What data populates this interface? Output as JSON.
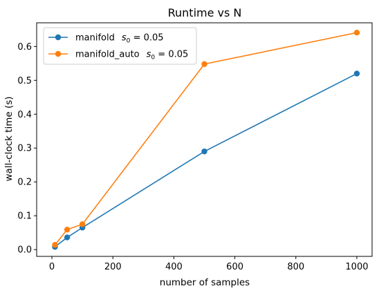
{
  "chart_data": {
    "type": "line",
    "title": "Runtime vs N",
    "xlabel": "number of samples",
    "ylabel": "wall-clock time (s)",
    "xlim": [
      -50,
      1050
    ],
    "ylim": [
      -0.02,
      0.67
    ],
    "x_ticks": [
      0,
      200,
      400,
      600,
      800,
      1000
    ],
    "y_ticks": [
      0.0,
      0.1,
      0.2,
      0.3,
      0.4,
      0.5,
      0.6
    ],
    "x_tick_labels": [
      "0",
      "200",
      "400",
      "600",
      "800",
      "1000"
    ],
    "y_tick_labels": [
      "0.0",
      "0.1",
      "0.2",
      "0.3",
      "0.4",
      "0.5",
      "0.6"
    ],
    "grid": false,
    "legend_position": "top-left",
    "series": [
      {
        "name": "manifold",
        "legend_param": "0.05",
        "color": "#1f77b4",
        "x": [
          10,
          50,
          100,
          500,
          1000
        ],
        "y": [
          0.008,
          0.036,
          0.065,
          0.29,
          0.52
        ]
      },
      {
        "name": "manifold_auto",
        "legend_param": "0.05",
        "color": "#ff7f0e",
        "x": [
          10,
          50,
          100,
          500,
          1000
        ],
        "y": [
          0.014,
          0.059,
          0.075,
          0.548,
          0.641
        ]
      }
    ]
  }
}
